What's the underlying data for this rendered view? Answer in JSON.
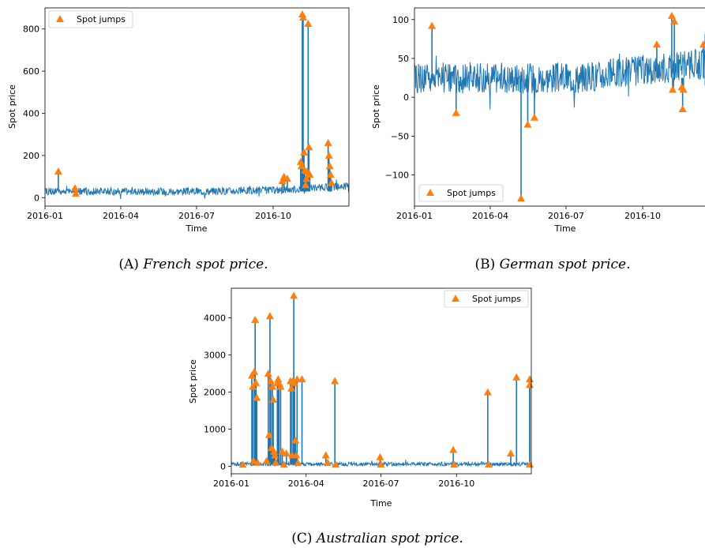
{
  "colors": {
    "series": "#1f77b4",
    "jumps": "#ff7f0e"
  },
  "chart_data": [
    {
      "id": "french",
      "type": "line",
      "caption_label": "(A)",
      "caption_title": "French spot price.",
      "xlabel": "Time",
      "ylabel": "Spot price",
      "xlim": [
        "2016-01-01",
        "2016-12-31"
      ],
      "ylim": [
        -40,
        900
      ],
      "xticks": [
        "2016-01",
        "2016-04",
        "2016-07",
        "2016-10"
      ],
      "yticks": [
        0,
        200,
        400,
        600,
        800
      ],
      "legend": {
        "label": "Spot jumps",
        "position": "upper-left"
      },
      "series": [
        {
          "name": "Spot jumps",
          "marker": "triangle",
          "points": [
            [
              "2016-01-17",
              125
            ],
            [
              "2016-02-06",
              45
            ],
            [
              "2016-02-07",
              20
            ],
            [
              "2016-10-12",
              80
            ],
            [
              "2016-10-14",
              100
            ],
            [
              "2016-10-18",
              90
            ],
            [
              "2016-11-03",
              170
            ],
            [
              "2016-11-04",
              150
            ],
            [
              "2016-11-05",
              870
            ],
            [
              "2016-11-06",
              855
            ],
            [
              "2016-11-07",
              215
            ],
            [
              "2016-11-08",
              130
            ],
            [
              "2016-11-09",
              60
            ],
            [
              "2016-11-10",
              90
            ],
            [
              "2016-11-11",
              125
            ],
            [
              "2016-11-12",
              825
            ],
            [
              "2016-11-13",
              240
            ],
            [
              "2016-11-14",
              110
            ],
            [
              "2016-12-06",
              260
            ],
            [
              "2016-12-07",
              200
            ],
            [
              "2016-12-08",
              150
            ],
            [
              "2016-12-09",
              110
            ],
            [
              "2016-12-10",
              70
            ]
          ]
        }
      ]
    },
    {
      "id": "german",
      "type": "line",
      "caption_label": "(B)",
      "caption_title": "German spot price.",
      "xlabel": "Time",
      "ylabel": "Spot price",
      "xlim": [
        "2016-01-01",
        "2016-12-31"
      ],
      "ylim": [
        -140,
        115
      ],
      "xticks": [
        "2016-01",
        "2016-04",
        "2016-07",
        "2016-10"
      ],
      "yticks": [
        100,
        50,
        0,
        -50,
        -100
      ],
      "legend": {
        "label": "Spot jumps",
        "position": "lower-left"
      },
      "series": [
        {
          "name": "Spot jumps",
          "marker": "triangle",
          "points": [
            [
              "2016-01-22",
              92
            ],
            [
              "2016-02-20",
              -20
            ],
            [
              "2016-05-08",
              -130
            ],
            [
              "2016-05-16",
              -35
            ],
            [
              "2016-05-24",
              -26
            ],
            [
              "2016-10-18",
              68
            ],
            [
              "2016-11-05",
              105
            ],
            [
              "2016-11-06",
              10
            ],
            [
              "2016-11-08",
              98
            ],
            [
              "2016-11-17",
              13
            ],
            [
              "2016-11-18",
              -15
            ],
            [
              "2016-11-19",
              10
            ],
            [
              "2016-12-31",
              68
            ]
          ]
        }
      ]
    },
    {
      "id": "australian",
      "type": "line",
      "caption_label": "(C)",
      "caption_title": "Australian spot price.",
      "xlabel": "Time",
      "ylabel": "Spot price",
      "xlim": [
        "2016-01-01",
        "2016-12-31"
      ],
      "ylim": [
        -200,
        4800
      ],
      "xticks": [
        "2016-01",
        "2016-04",
        "2016-07",
        "2016-10"
      ],
      "yticks": [
        0,
        1000,
        2000,
        3000,
        4000
      ],
      "legend": {
        "label": "Spot jumps",
        "position": "upper-right"
      },
      "series": [
        {
          "name": "Spot jumps",
          "marker": "triangle",
          "points": [
            [
              "2016-01-15",
              50
            ],
            [
              "2016-01-26",
              2450
            ],
            [
              "2016-01-27",
              2150
            ],
            [
              "2016-01-28",
              150
            ],
            [
              "2016-01-29",
              2550
            ],
            [
              "2016-01-30",
              3950
            ],
            [
              "2016-01-31",
              2250
            ],
            [
              "2016-02-01",
              1850
            ],
            [
              "2016-02-02",
              100
            ],
            [
              "2016-02-13",
              150
            ],
            [
              "2016-02-15",
              2500
            ],
            [
              "2016-02-16",
              850
            ],
            [
              "2016-02-17",
              4050
            ],
            [
              "2016-02-18",
              2300
            ],
            [
              "2016-02-19",
              500
            ],
            [
              "2016-02-20",
              2150
            ],
            [
              "2016-02-21",
              1800
            ],
            [
              "2016-02-22",
              400
            ],
            [
              "2016-02-23",
              300
            ],
            [
              "2016-02-24",
              100
            ],
            [
              "2016-02-26",
              2250
            ],
            [
              "2016-02-27",
              2350
            ],
            [
              "2016-02-28",
              2250
            ],
            [
              "2016-03-01",
              2150
            ],
            [
              "2016-03-03",
              400
            ],
            [
              "2016-03-05",
              50
            ],
            [
              "2016-03-08",
              350
            ],
            [
              "2016-03-13",
              2300
            ],
            [
              "2016-03-14",
              2100
            ],
            [
              "2016-03-15",
              300
            ],
            [
              "2016-03-16",
              2300
            ],
            [
              "2016-03-17",
              4600
            ],
            [
              "2016-03-18",
              2250
            ],
            [
              "2016-03-19",
              700
            ],
            [
              "2016-03-20",
              300
            ],
            [
              "2016-03-21",
              2350
            ],
            [
              "2016-03-22",
              100
            ],
            [
              "2016-03-27",
              2350
            ],
            [
              "2016-04-25",
              300
            ],
            [
              "2016-04-27",
              100
            ],
            [
              "2016-05-06",
              2300
            ],
            [
              "2016-05-07",
              50
            ],
            [
              "2016-06-30",
              250
            ],
            [
              "2016-07-01",
              50
            ],
            [
              "2016-09-27",
              450
            ],
            [
              "2016-09-28",
              50
            ],
            [
              "2016-11-08",
              2000
            ],
            [
              "2016-11-09",
              50
            ],
            [
              "2016-12-06",
              350
            ],
            [
              "2016-12-13",
              2400
            ],
            [
              "2016-12-29",
              2200
            ],
            [
              "2016-12-30",
              2350
            ],
            [
              "2016-12-31",
              50
            ]
          ]
        }
      ]
    }
  ]
}
